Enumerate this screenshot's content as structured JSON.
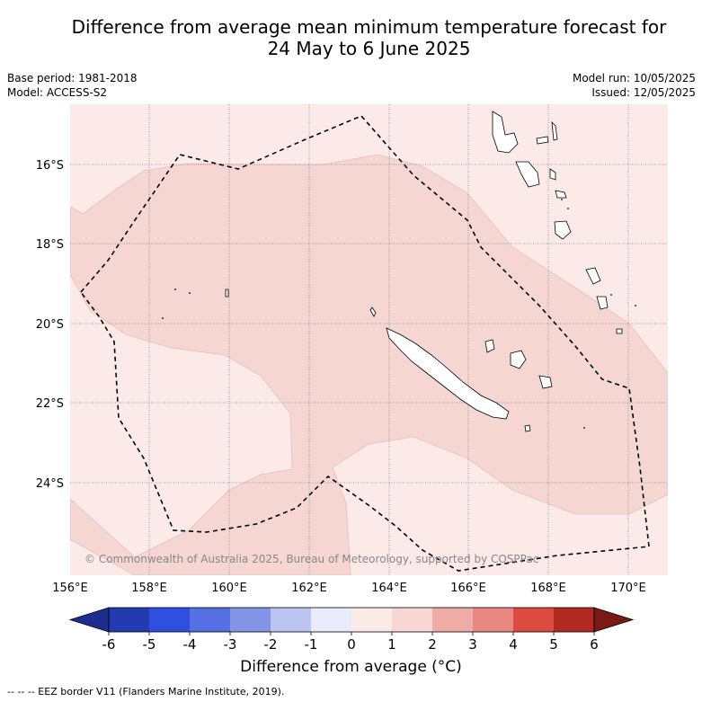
{
  "title_line1": "Difference from average mean minimum temperature forecast for",
  "title_line2": "24 May to 6 June 2025",
  "base_period": "Base period: 1981-2018",
  "model": "Model: ACCESS-S2",
  "model_run": "Model run: 10/05/2025",
  "issued": "Issued: 12/05/2025",
  "copyright": "© Commonwealth of Australia 2025, Bureau of Meteorology, supported by COSPPac",
  "lat_labels": [
    "16°S",
    "18°S",
    "20°S",
    "22°S",
    "24°S"
  ],
  "lon_labels": [
    "156°E",
    "158°E",
    "160°E",
    "162°E",
    "164°E",
    "166°E",
    "168°E",
    "170°E"
  ],
  "colorbar": {
    "ticks": [
      "-6",
      "-5",
      "-4",
      "-3",
      "-2",
      "-1",
      "0",
      "1",
      "2",
      "3",
      "4",
      "5",
      "6"
    ],
    "colors": [
      "#1f2d8f",
      "#223cb0",
      "#2f4fe0",
      "#5470e3",
      "#8495e8",
      "#bcc4f2",
      "#e8ebfa",
      "#fceae7",
      "#f7d6d3",
      "#efaca6",
      "#e88880",
      "#dc4a40",
      "#b12a22",
      "#7a1a16"
    ],
    "label": "Difference from average (°C)"
  },
  "legend_footnote": "-- -- -- EEZ border V11 (Flanders Marine Institute, 2019).",
  "map_colors": {
    "light": "#fbeae8",
    "medium": "#f5d6d3",
    "grid": "#888888",
    "eez": "#000000"
  }
}
